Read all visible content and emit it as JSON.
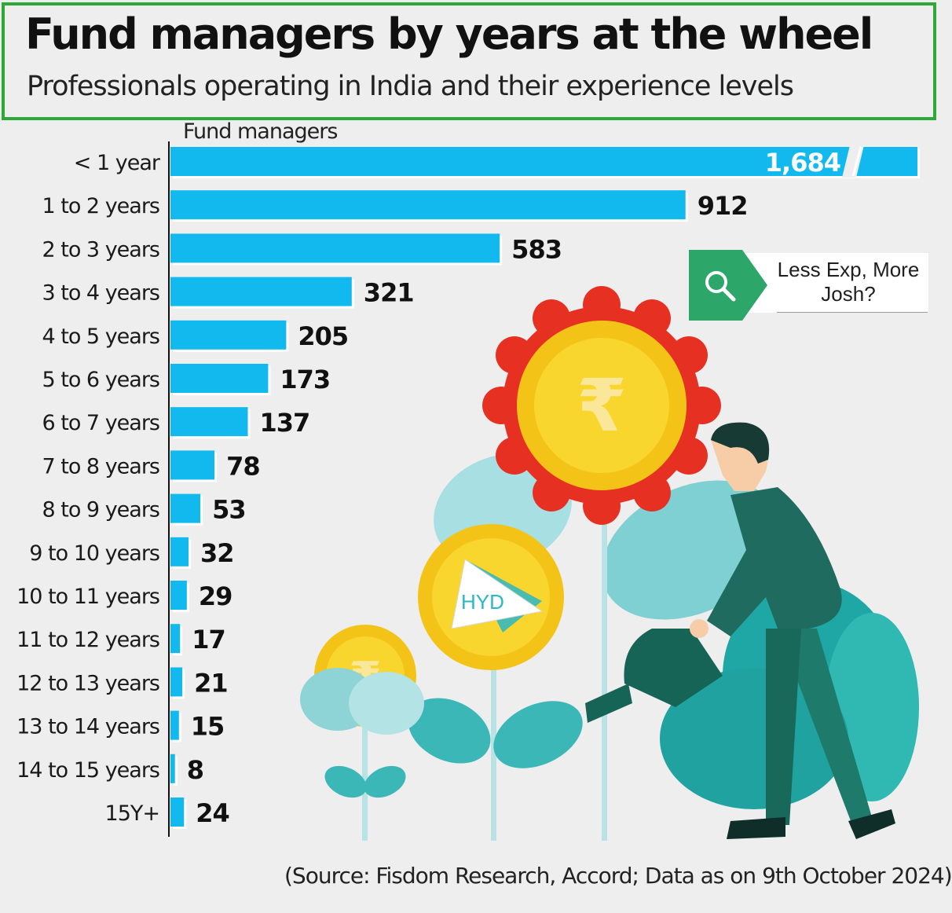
{
  "header": {
    "title": "Fund managers by years at the wheel",
    "subtitle": "Professionals operating in India and their experience levels"
  },
  "chart_data": {
    "type": "bar",
    "orientation": "horizontal",
    "xlabel": "Fund managers",
    "categories": [
      "< 1 year",
      "1 to 2 years",
      "2 to 3 years",
      "3 to 4 years",
      "4 to 5 years",
      "5 to 6 years",
      "6 to 7 years",
      "7 to 8 years",
      "8 to 9 years",
      "9 to 10 years",
      "10 to 11 years",
      "11 to 12 years",
      "12 to 13 years",
      "13 to 14 years",
      "14 to 15 years",
      "15Y+"
    ],
    "values": [
      1684,
      912,
      583,
      321,
      205,
      173,
      137,
      78,
      53,
      32,
      29,
      17,
      21,
      15,
      8,
      24
    ],
    "value_labels": [
      "1,684",
      "912",
      "583",
      "321",
      "205",
      "173",
      "137",
      "78",
      "53",
      "32",
      "29",
      "17",
      "21",
      "15",
      "8",
      "24"
    ],
    "axis_break_on_largest_bar": true,
    "bar_color": "#12b9ee",
    "grid": false,
    "legend": "none"
  },
  "search_chip": {
    "icon": "magnifier-icon",
    "text_line1": "Less Exp, More",
    "text_line2": "Josh?",
    "color": "#2da66a"
  },
  "watermark": {
    "text": "HYD"
  },
  "illustration": {
    "description_icon": "rupee-flowers-watering-man"
  },
  "source": "(Source: Fisdom Research, Accord; Data as on 9th October 2024)",
  "colors": {
    "border": "#2ea836",
    "bar": "#12b9ee",
    "flower_red": "#e63022",
    "coin_yellow": "#f7cc18",
    "leaf_teal": "#3dbbbb",
    "suit_green": "#1f6b5f"
  }
}
